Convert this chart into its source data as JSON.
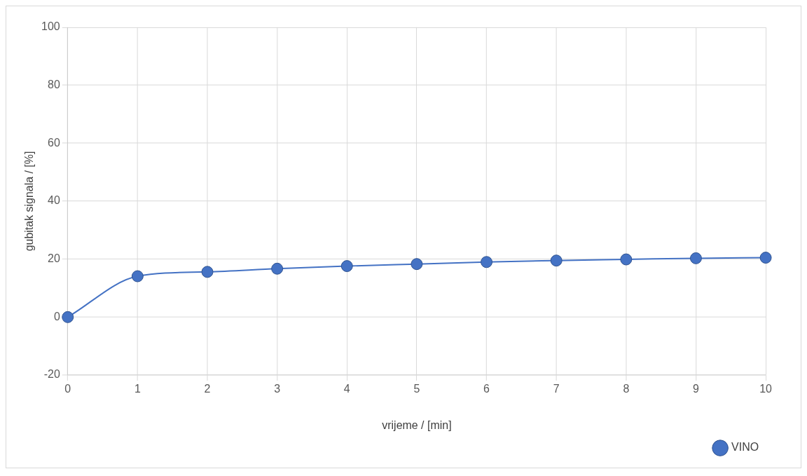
{
  "chart_data": {
    "type": "line",
    "xlabel": "vrijeme / [min]",
    "ylabel": "gubitak signala / [%]",
    "x": [
      0,
      1,
      2,
      3,
      4,
      5,
      6,
      7,
      8,
      9,
      10
    ],
    "series": [
      {
        "name": "VINO",
        "color": "#4472c4",
        "values": [
          0,
          14.1,
          15.6,
          16.7,
          17.6,
          18.3,
          19.0,
          19.5,
          19.9,
          20.3,
          20.5
        ]
      }
    ],
    "xlim": [
      0,
      10
    ],
    "xticks": [
      0,
      1,
      2,
      3,
      4,
      5,
      6,
      7,
      8,
      9,
      10
    ],
    "ylim": [
      -20,
      100
    ],
    "yticks": [
      -20,
      0,
      20,
      40,
      60,
      80,
      100
    ],
    "grid": true,
    "legend": "bottom right",
    "marker": "circle",
    "line_style": "solid"
  }
}
